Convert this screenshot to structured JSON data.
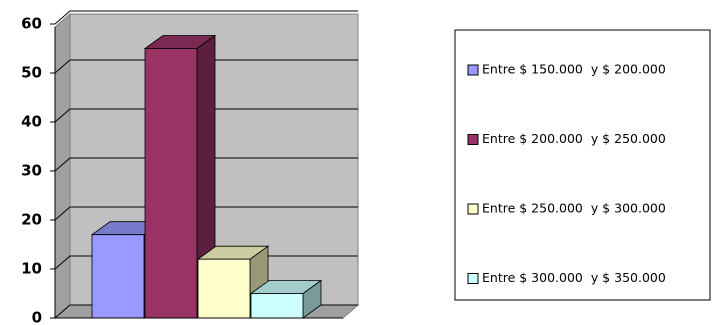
{
  "chart_data": {
    "type": "bar",
    "categories": [
      null
    ],
    "series": [
      {
        "name": "Entre $ 150.000  y $ 200.000",
        "color": "#9999ff",
        "values": [
          17
        ]
      },
      {
        "name": "Entre $ 200.000  y $ 250.000",
        "color": "#993366",
        "values": [
          55
        ]
      },
      {
        "name": "Entre $ 250.000  y $ 300.000",
        "color": "#ffffcc",
        "values": [
          12
        ]
      },
      {
        "name": "Entre $ 300.000  y $ 350.000",
        "color": "#ccffff",
        "values": [
          5
        ]
      }
    ],
    "ylim": [
      0,
      60
    ],
    "yticks": [
      0,
      10,
      20,
      30,
      40,
      50,
      60
    ],
    "grid": true,
    "legend": "right"
  }
}
